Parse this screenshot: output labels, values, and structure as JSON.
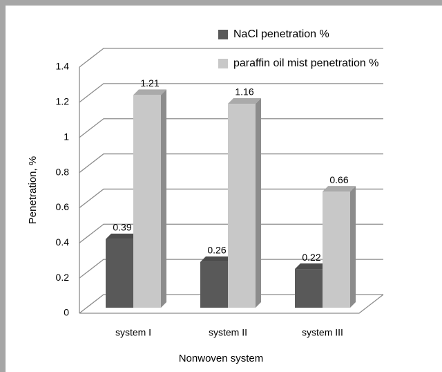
{
  "chart_data": {
    "type": "bar3d",
    "categories": [
      "system I",
      "system II",
      "system III"
    ],
    "series": [
      {
        "name": "NaCl penetration %",
        "color": "#595959",
        "values": [
          0.39,
          0.26,
          0.22
        ]
      },
      {
        "name": "paraffin oil mist penetration %",
        "color": "#c8c8c8",
        "values": [
          1.21,
          1.16,
          0.66
        ]
      }
    ],
    "ylabel": "Penetration, %",
    "xlabel": "Nonwoven system",
    "ylim": [
      0,
      1.4
    ],
    "yticks": [
      0,
      0.2,
      0.4,
      0.6,
      0.8,
      1,
      1.2,
      1.4
    ],
    "grid": true,
    "legend": "top-right"
  }
}
